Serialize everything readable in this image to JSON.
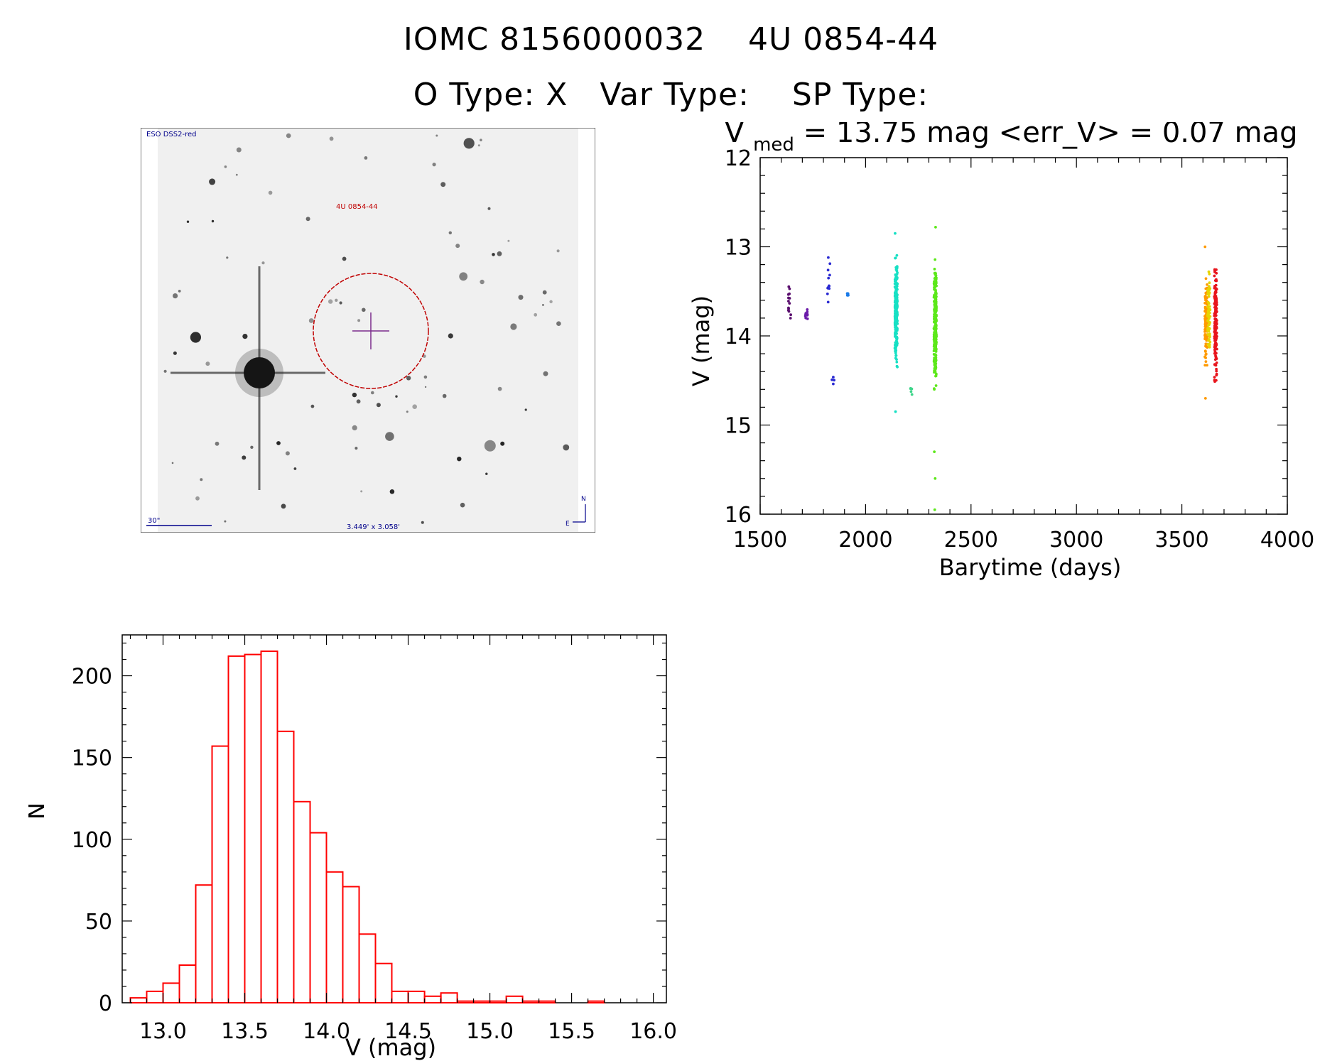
{
  "header": {
    "title": "IOMC 8156000032    4U 0854-44",
    "subtitle": "O Type: X   Var Type:    SP Type:"
  },
  "finder_chart": {
    "survey_label": "ESO DSS2-red",
    "object_label": "4U 0854-44",
    "scale_label": "30\"",
    "fov_label": "3.449' x 3.058'",
    "north": "N",
    "east": "E",
    "ellipse_color": "#c00000",
    "cross_color": "#7a2b8c",
    "label_color": "#00008b",
    "object_color": "#c00000"
  },
  "chart_data": [
    {
      "type": "scatter",
      "name": "light-curve",
      "title_parts": {
        "v": "V",
        "sub": "med",
        "rest": " = 13.75 mag <err_V> = 0.07 mag"
      },
      "xlabel": "Barytime (days)",
      "ylabel": "V (mag)",
      "xlim": [
        1500,
        4000
      ],
      "ylim": [
        16,
        12
      ],
      "xticks": [
        1500,
        2000,
        2500,
        3000,
        3500,
        4000
      ],
      "yticks": [
        12,
        13,
        14,
        15,
        16
      ],
      "groups": [
        {
          "x": 1640,
          "y_center": 13.62,
          "y_spread": 0.22,
          "n": 14,
          "color": "#5a0f6e"
        },
        {
          "x": 1720,
          "y_center": 13.75,
          "y_spread": 0.14,
          "n": 9,
          "color": "#6a1aa8"
        },
        {
          "x": 1825,
          "y_center": 13.35,
          "y_spread": 0.22,
          "n": 12,
          "color": "#2a2ad2"
        },
        {
          "x": 1845,
          "y_center": 14.45,
          "y_spread": 0.1,
          "n": 4,
          "color": "#2a2ad2"
        },
        {
          "x": 1915,
          "y_center": 13.52,
          "y_spread": 0.03,
          "n": 4,
          "color": "#1a7ae8"
        },
        {
          "x": 2145,
          "y_center": 13.75,
          "y_spread": 0.45,
          "n": 260,
          "color": "#17e0c4"
        },
        {
          "x": 2215,
          "y_center": 14.62,
          "y_spread": 0.05,
          "n": 6,
          "color": "#3ed58a"
        },
        {
          "x": 2330,
          "y_center": 13.85,
          "y_spread": 0.55,
          "n": 280,
          "color": "#5ce81a"
        },
        {
          "x": 3615,
          "y_center": 13.9,
          "y_spread": 0.45,
          "n": 120,
          "color": "#ff9a00"
        },
        {
          "x": 3628,
          "y_center": 13.75,
          "y_spread": 0.35,
          "n": 70,
          "color": "#e6d400"
        },
        {
          "x": 3660,
          "y_center": 13.85,
          "y_spread": 0.5,
          "n": 160,
          "color": "#e8141c"
        }
      ],
      "outliers": [
        {
          "x": 2140,
          "y": 12.85,
          "color": "#17e0c4"
        },
        {
          "x": 2142,
          "y": 14.85,
          "color": "#17e0c4"
        },
        {
          "x": 2332,
          "y": 12.78,
          "color": "#5ce81a"
        },
        {
          "x": 2326,
          "y": 15.3,
          "color": "#5ce81a"
        },
        {
          "x": 2330,
          "y": 15.6,
          "color": "#5ce81a"
        },
        {
          "x": 2328,
          "y": 15.95,
          "color": "#5ce81a"
        },
        {
          "x": 3610,
          "y": 13.0,
          "color": "#ff9a00"
        },
        {
          "x": 3612,
          "y": 14.7,
          "color": "#ff9a00"
        }
      ]
    },
    {
      "type": "bar",
      "name": "histogram",
      "xlabel": "V (mag)",
      "ylabel": "N",
      "xlim": [
        12.75,
        16.08
      ],
      "ylim": [
        0,
        225
      ],
      "xticks": [
        13.0,
        13.5,
        14.0,
        14.5,
        15.0,
        15.5,
        16.0
      ],
      "xtick_labels": [
        "13.0",
        "13.5",
        "14.0",
        "14.5",
        "15.0",
        "15.5",
        "16.0"
      ],
      "yticks": [
        0,
        50,
        100,
        150,
        200
      ],
      "bin_start": 12.8,
      "bin_width": 0.1,
      "color": "#ff0000",
      "values": [
        3,
        7,
        12,
        23,
        72,
        157,
        212,
        213,
        215,
        166,
        123,
        104,
        80,
        71,
        42,
        24,
        7,
        7,
        4,
        6,
        1,
        1,
        1,
        4,
        1,
        1,
        0,
        0,
        1
      ]
    }
  ]
}
